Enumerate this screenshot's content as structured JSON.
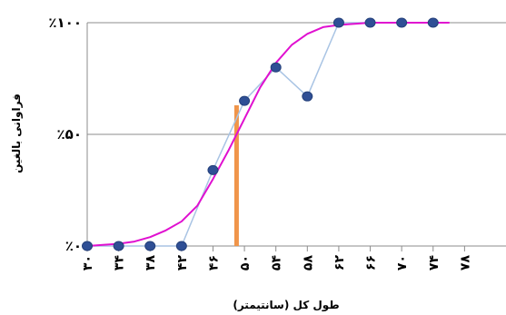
{
  "chart_data": {
    "type": "line",
    "xlabel": "طول کل (سانتیمتر)",
    "ylabel": "فراوانی بالغین",
    "x_ticks": [
      30,
      34,
      38,
      42,
      46,
      50,
      54,
      58,
      62,
      66,
      70,
      74,
      78
    ],
    "x_tick_labels": [
      "۳۰",
      "۳۴",
      "۳۸",
      "۴۲",
      "۴۶",
      "۵۰",
      "۵۴",
      "۵۸",
      "۶۲",
      "۶۶",
      "۷۰",
      "۷۴",
      "۷۸"
    ],
    "xlim": [
      30,
      82
    ],
    "y_ticks": [
      0,
      50,
      100
    ],
    "y_tick_labels": [
      "٪۰",
      "٪۵۰",
      "٪۱۰۰"
    ],
    "ylim": [
      0,
      100
    ],
    "grid": "horizontal",
    "series": [
      {
        "kind": "observed",
        "color": "#a9c4e4",
        "marker_color": "#2f4f95",
        "x": [
          30,
          34,
          38,
          42,
          46,
          50,
          54,
          58,
          62,
          66,
          70,
          74
        ],
        "y": [
          0,
          0,
          0,
          0,
          34,
          65,
          80,
          67,
          100,
          100,
          100,
          100
        ]
      },
      {
        "kind": "fitted",
        "color": "#e010d0",
        "x": [
          30,
          32,
          34,
          36,
          38,
          40,
          42,
          44,
          46,
          48,
          50,
          52,
          54,
          56,
          58,
          60,
          62,
          64,
          66,
          68,
          70,
          72,
          74,
          76
        ],
        "y": [
          0,
          0.5,
          1,
          2,
          4,
          7,
          11,
          18,
          30,
          43,
          57,
          71,
          82,
          90,
          95,
          98,
          99,
          99.5,
          100,
          100,
          100,
          100,
          100,
          100
        ]
      }
    ],
    "marker_line": {
      "x": 49,
      "y": 63,
      "color": "#f0954a"
    }
  }
}
